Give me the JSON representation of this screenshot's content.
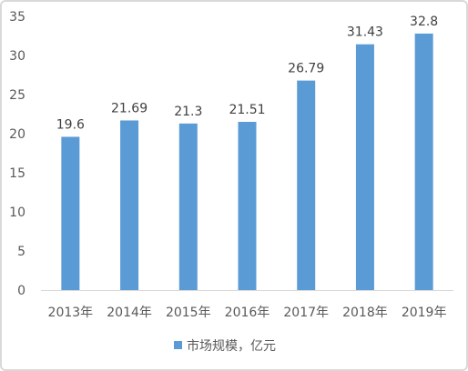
{
  "chart_data": {
    "type": "bar",
    "categories": [
      "2013年",
      "2014年",
      "2015年",
      "2016年",
      "2017年",
      "2018年",
      "2019年"
    ],
    "series": [
      {
        "name": "市场规模，亿元",
        "values": [
          19.6,
          21.69,
          21.3,
          21.51,
          26.79,
          31.43,
          32.8
        ],
        "color": "#5b9bd5"
      }
    ],
    "data_labels": [
      "19.6",
      "21.69",
      "21.3",
      "21.51",
      "26.79",
      "31.43",
      "32.8"
    ],
    "ylim": [
      0,
      35
    ],
    "yticks": [
      0,
      5,
      10,
      15,
      20,
      25,
      30,
      35
    ],
    "grid": false,
    "legend_position": "bottom",
    "title": "",
    "xlabel": "",
    "ylabel": ""
  }
}
